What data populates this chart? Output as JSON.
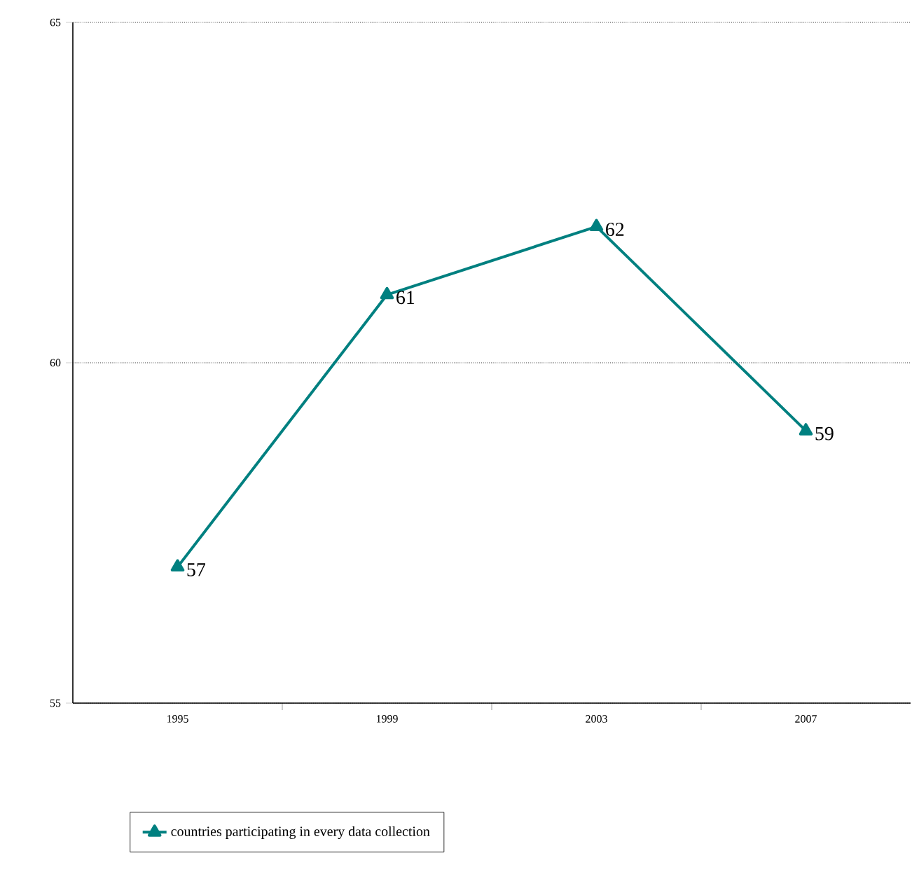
{
  "chart_data": {
    "type": "line",
    "categories": [
      "1995",
      "1999",
      "2003",
      "2007"
    ],
    "series": [
      {
        "name": "countries participating in every data collection",
        "color": "#008080",
        "values": [
          57,
          61,
          62,
          59
        ]
      }
    ],
    "ylim": [
      55,
      65
    ],
    "yticks": [
      55,
      60,
      65
    ],
    "grid": "y",
    "legend": "bottom",
    "marker": "triangle",
    "line_style": "solid",
    "data_labels": true
  }
}
